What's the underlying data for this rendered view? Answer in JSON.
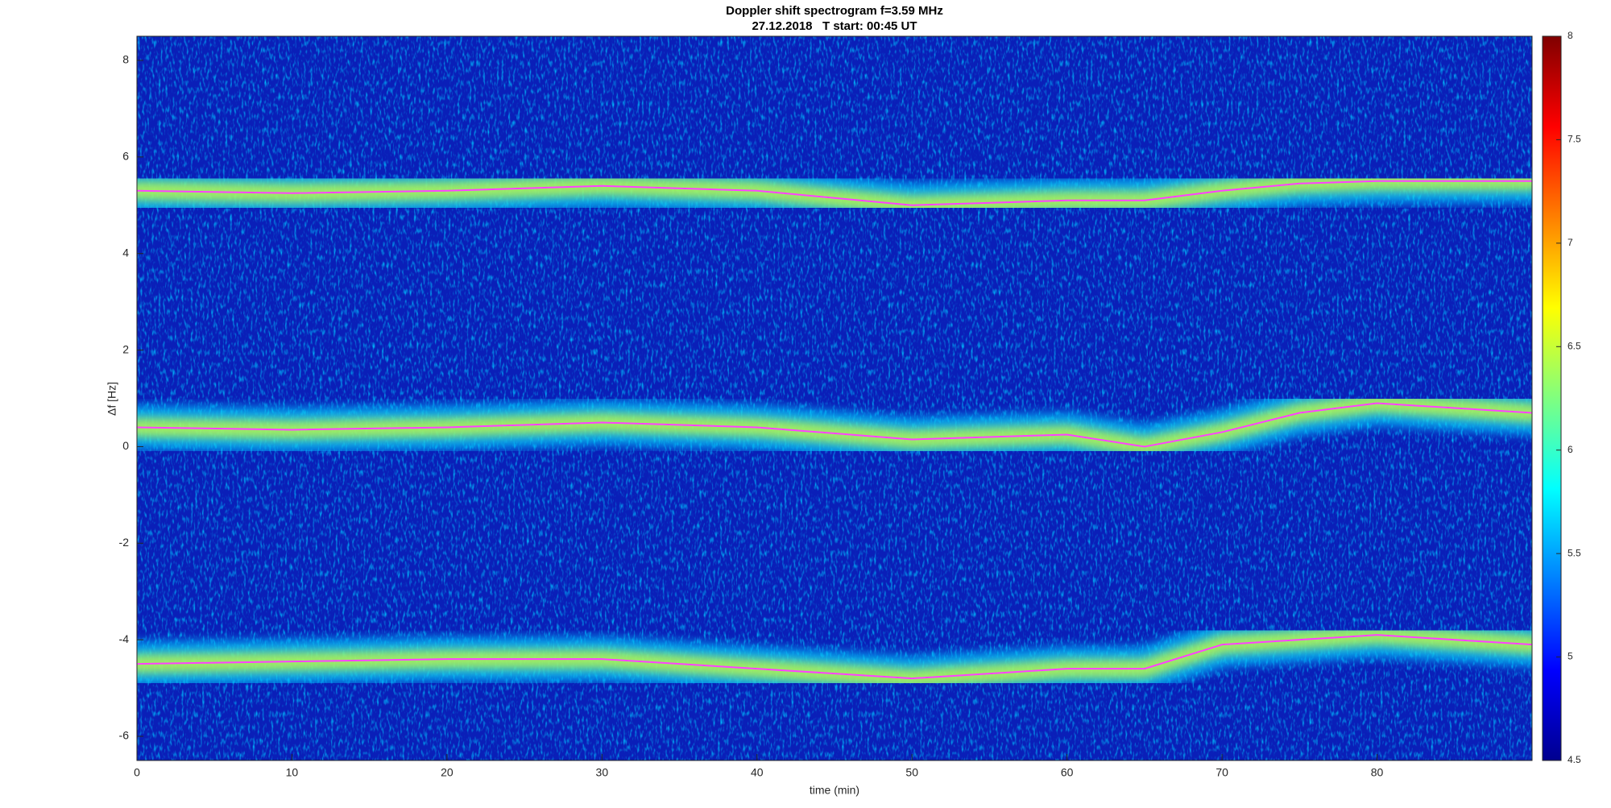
{
  "chart_data": {
    "type": "spectrogram",
    "title": "Doppler shift spectrogram f=3.59 MHz",
    "subtitle": "27.12.2018   T start: 00:45 UT",
    "x_label": "time (min)",
    "y_label": "Δf [Hz]",
    "xlim": [
      0,
      90
    ],
    "xticks": [
      0,
      10,
      20,
      30,
      40,
      50,
      60,
      70,
      80
    ],
    "ylim": [
      -6.5,
      8.5
    ],
    "yticks": [
      -6,
      -4,
      -2,
      0,
      2,
      4,
      6,
      8
    ],
    "clim": [
      4.5,
      8
    ],
    "cticks": [
      4.5,
      5,
      5.5,
      6,
      6.5,
      7,
      7.5,
      8
    ],
    "colormap": "jet",
    "x": [
      0,
      10,
      20,
      30,
      40,
      50,
      60,
      65,
      70,
      75,
      80,
      90
    ],
    "series": [
      {
        "color": "#ff40ff",
        "values": [
          5.3,
          5.25,
          5.3,
          5.4,
          5.3,
          5.0,
          5.1,
          5.1,
          5.3,
          5.45,
          5.5,
          5.5
        ]
      },
      {
        "color": "#ff40ff",
        "values": [
          0.4,
          0.35,
          0.4,
          0.5,
          0.4,
          0.15,
          0.25,
          0.0,
          0.3,
          0.7,
          0.9,
          0.7
        ]
      },
      {
        "color": "#ff40ff",
        "values": [
          -4.5,
          -4.45,
          -4.4,
          -4.4,
          -4.6,
          -4.8,
          -4.6,
          -4.6,
          -4.1,
          -4.0,
          -3.9,
          -4.1
        ]
      }
    ]
  }
}
